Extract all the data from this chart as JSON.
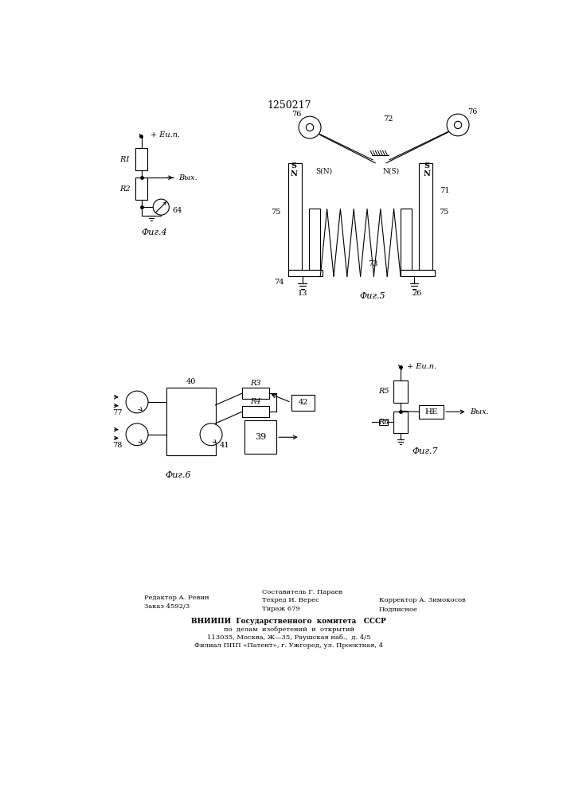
{
  "title": "1250217",
  "bg_color": "#ffffff",
  "fig4_label": "Фиг.4",
  "fig5_label": "Фиг.5",
  "fig6_label": "Фиг.6",
  "fig7_label": "Фиг.7"
}
